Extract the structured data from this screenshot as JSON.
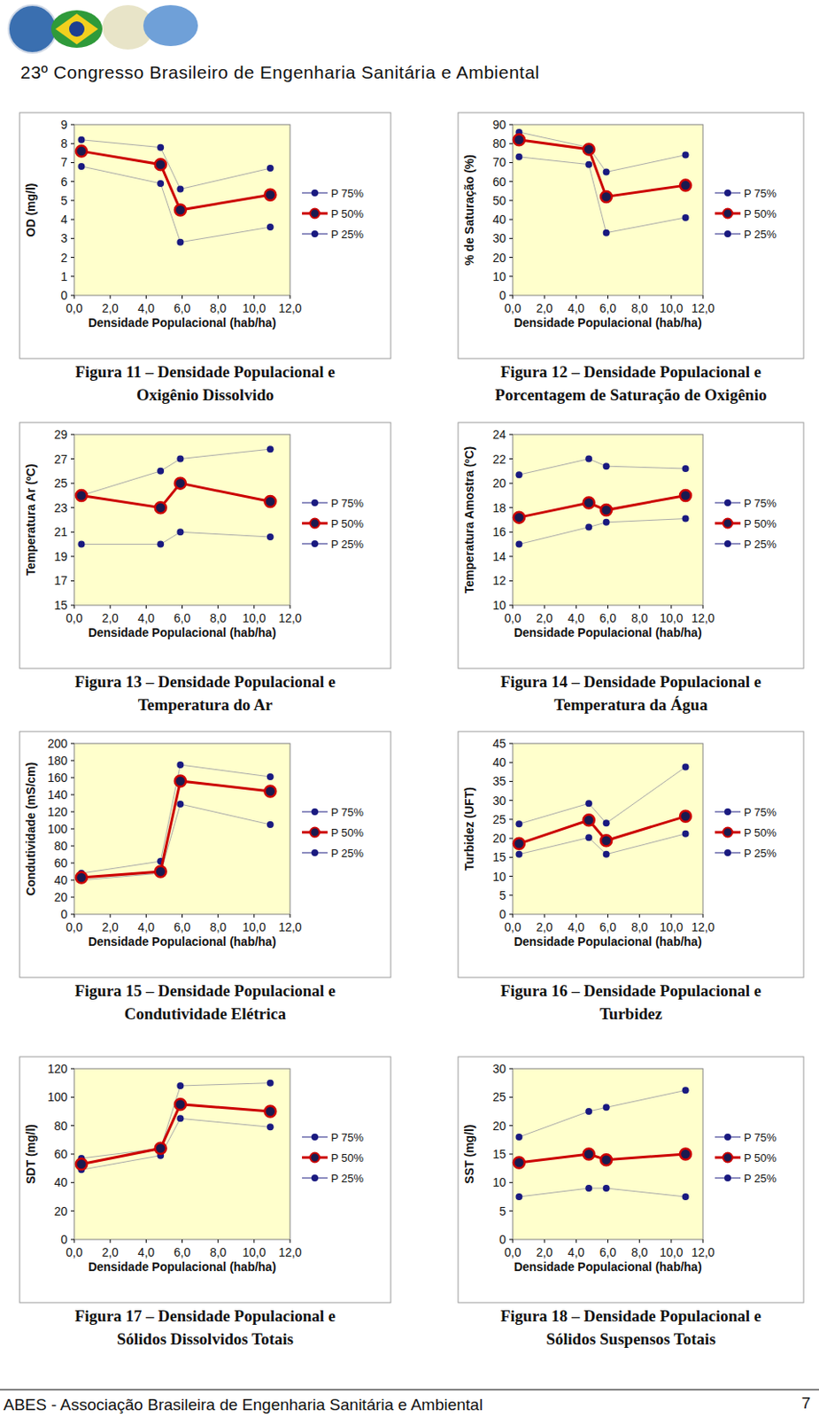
{
  "header": {
    "title": "23º Congresso Brasileiro de Engenharia Sanitária e Ambiental"
  },
  "footer": {
    "text": "ABES - Associação Brasileira de Engenharia Sanitária e Ambiental",
    "page": 7
  },
  "chart_data": [
    {
      "type": "line",
      "title": "Figura 11 – Densidade Populacional e",
      "subtitle": "Oxigênio Dissolvido",
      "x_label": "Densidade Populacional (hab/ha)",
      "y_label": "OD (mg/l)",
      "x": [
        0.4,
        4.8,
        5.9,
        10.9
      ],
      "series": [
        {
          "name": "P 75%",
          "color": "#1a1a80",
          "marker": "circle",
          "line_style": "thin",
          "values": [
            8.2,
            7.8,
            5.6,
            6.7
          ]
        },
        {
          "name": "P 50%",
          "color": "#cc0000",
          "marker": "circle",
          "line_style": "thick",
          "values": [
            7.6,
            6.9,
            4.5,
            5.3
          ]
        },
        {
          "name": "P 25%",
          "color": "#1a1a80",
          "marker": "circle",
          "line_style": "thin",
          "values": [
            6.8,
            5.9,
            2.8,
            3.6
          ]
        }
      ],
      "xlim": [
        0,
        12
      ],
      "xticks": [
        {
          "value": 0,
          "label": "0,0"
        },
        {
          "value": 2,
          "label": "2,0"
        },
        {
          "value": 4,
          "label": "4,0"
        },
        {
          "value": 6,
          "label": "6,0"
        },
        {
          "value": 8,
          "label": "8,0"
        },
        {
          "value": 10,
          "label": "10,0"
        },
        {
          "value": 12,
          "label": "12,0"
        }
      ],
      "ylim": [
        0,
        9
      ],
      "yticks": [
        0,
        1,
        2,
        3,
        4,
        5,
        6,
        7,
        8,
        9
      ],
      "grid": false,
      "legend": "right"
    },
    {
      "type": "line",
      "title": "Figura 12 – Densidade Populacional e",
      "subtitle": "Porcentagem de Saturação de Oxigênio",
      "x_label": "Densidade Populacional (hab/ha)",
      "y_label": "% de Saturação (%)",
      "x": [
        0.4,
        4.8,
        5.9,
        10.9
      ],
      "series": [
        {
          "name": "P 75%",
          "color": "#1a1a80",
          "marker": "circle",
          "line_style": "thin",
          "values": [
            86,
            78,
            65,
            74
          ]
        },
        {
          "name": "P 50%",
          "color": "#cc0000",
          "marker": "circle",
          "line_style": "thick",
          "values": [
            82,
            77,
            52,
            58
          ]
        },
        {
          "name": "P 25%",
          "color": "#1a1a80",
          "marker": "circle",
          "line_style": "thin",
          "values": [
            73,
            69,
            33,
            41
          ]
        }
      ],
      "xlim": [
        0,
        12
      ],
      "xticks": [
        {
          "value": 0,
          "label": "0,0"
        },
        {
          "value": 2,
          "label": "2,0"
        },
        {
          "value": 4,
          "label": "4,0"
        },
        {
          "value": 6,
          "label": "6,0"
        },
        {
          "value": 8,
          "label": "8,0"
        },
        {
          "value": 10,
          "label": "10,0"
        },
        {
          "value": 12,
          "label": "12,0"
        }
      ],
      "ylim": [
        0,
        90
      ],
      "yticks": [
        0,
        10,
        20,
        30,
        40,
        50,
        60,
        70,
        80,
        90
      ],
      "grid": false,
      "legend": "right"
    },
    {
      "type": "line",
      "title": "Figura 13 – Densidade Populacional e",
      "subtitle": "Temperatura do Ar",
      "x_label": "Densidade Populacional (hab/ha)",
      "y_label": "Temperatura Ar (ºC)",
      "x": [
        0.4,
        4.8,
        5.9,
        10.9
      ],
      "series": [
        {
          "name": "P 75%",
          "color": "#1a1a80",
          "marker": "circle",
          "line_style": "thin",
          "values": [
            24,
            26,
            27,
            27.8
          ]
        },
        {
          "name": "P 50%",
          "color": "#cc0000",
          "marker": "circle",
          "line_style": "thick",
          "values": [
            24,
            23,
            25,
            23.5
          ]
        },
        {
          "name": "P 25%",
          "color": "#1a1a80",
          "marker": "circle",
          "line_style": "thin",
          "values": [
            20,
            20,
            21,
            20.6
          ]
        }
      ],
      "xlim": [
        0,
        12
      ],
      "xticks": [
        {
          "value": 0,
          "label": "0,0"
        },
        {
          "value": 2,
          "label": "2,0"
        },
        {
          "value": 4,
          "label": "4,0"
        },
        {
          "value": 6,
          "label": "6,0"
        },
        {
          "value": 8,
          "label": "8,0"
        },
        {
          "value": 10,
          "label": "10,0"
        },
        {
          "value": 12,
          "label": "12,0"
        }
      ],
      "ylim": [
        15,
        29
      ],
      "yticks": [
        15,
        17,
        19,
        21,
        23,
        25,
        27,
        29
      ],
      "grid": false,
      "legend": "right"
    },
    {
      "type": "line",
      "title": "Figura 14 – Densidade Populacional e",
      "subtitle": "Temperatura da Água",
      "x_label": "Densidade Populacional (hab/ha)",
      "y_label": "Temperatura Amostra (ºC)",
      "x": [
        0.4,
        4.8,
        5.9,
        10.9
      ],
      "series": [
        {
          "name": "P 75%",
          "color": "#1a1a80",
          "marker": "circle",
          "line_style": "thin",
          "values": [
            20.7,
            22,
            21.4,
            21.2
          ]
        },
        {
          "name": "P 50%",
          "color": "#cc0000",
          "marker": "circle",
          "line_style": "thick",
          "values": [
            17.2,
            18.4,
            17.8,
            19
          ]
        },
        {
          "name": "P 25%",
          "color": "#1a1a80",
          "marker": "circle",
          "line_style": "thin",
          "values": [
            15,
            16.4,
            16.8,
            17.1
          ]
        }
      ],
      "xlim": [
        0,
        12
      ],
      "xticks": [
        {
          "value": 0,
          "label": "0,0"
        },
        {
          "value": 2,
          "label": "2,0"
        },
        {
          "value": 4,
          "label": "4,0"
        },
        {
          "value": 6,
          "label": "6,0"
        },
        {
          "value": 8,
          "label": "8,0"
        },
        {
          "value": 10,
          "label": "10,0"
        },
        {
          "value": 12,
          "label": "12,0"
        }
      ],
      "ylim": [
        10,
        24
      ],
      "yticks": [
        10,
        12,
        14,
        16,
        18,
        20,
        22,
        24
      ],
      "grid": false,
      "legend": "right"
    },
    {
      "type": "line",
      "title": "Figura 15 – Densidade Populacional e",
      "subtitle": "Condutividade Elétrica",
      "x_label": "Densidade Populacional (hab/ha)",
      "y_label": "Condutividade (mS/cm)",
      "x": [
        0.4,
        4.8,
        5.9,
        10.9
      ],
      "series": [
        {
          "name": "P 75%",
          "color": "#1a1a80",
          "marker": "circle",
          "line_style": "thin",
          "values": [
            48,
            62,
            175,
            161
          ]
        },
        {
          "name": "P 50%",
          "color": "#cc0000",
          "marker": "circle",
          "line_style": "thick",
          "values": [
            43,
            50,
            156,
            144
          ]
        },
        {
          "name": "P 25%",
          "color": "#1a1a80",
          "marker": "circle",
          "line_style": "thin",
          "values": [
            40,
            48,
            129,
            105
          ]
        }
      ],
      "xlim": [
        0,
        12
      ],
      "xticks": [
        {
          "value": 0,
          "label": "0,0"
        },
        {
          "value": 2,
          "label": "2,0"
        },
        {
          "value": 4,
          "label": "4,0"
        },
        {
          "value": 6,
          "label": "6,0"
        },
        {
          "value": 8,
          "label": "8,0"
        },
        {
          "value": 10,
          "label": "10,0"
        },
        {
          "value": 12,
          "label": "12,0"
        }
      ],
      "ylim": [
        0,
        200
      ],
      "yticks": [
        0,
        20,
        40,
        60,
        80,
        100,
        120,
        140,
        160,
        180,
        200
      ],
      "grid": false,
      "legend": "right"
    },
    {
      "type": "line",
      "title": "Figura 16 – Densidade Populacional e",
      "subtitle": "Turbidez",
      "x_label": "Densidade Populacional (hab/ha)",
      "y_label": "Turbidez (UFT)",
      "x": [
        0.4,
        4.8,
        5.9,
        10.9
      ],
      "series": [
        {
          "name": "P 75%",
          "color": "#1a1a80",
          "marker": "circle",
          "line_style": "thin",
          "values": [
            23.8,
            29.2,
            24,
            38.8
          ]
        },
        {
          "name": "P 50%",
          "color": "#cc0000",
          "marker": "circle",
          "line_style": "thick",
          "values": [
            18.6,
            24.8,
            19.4,
            25.8
          ]
        },
        {
          "name": "P 25%",
          "color": "#1a1a80",
          "marker": "circle",
          "line_style": "thin",
          "values": [
            15.8,
            20.2,
            15.8,
            21.2
          ]
        }
      ],
      "xlim": [
        0,
        12
      ],
      "xticks": [
        {
          "value": 0,
          "label": "0,0"
        },
        {
          "value": 2,
          "label": "2,0"
        },
        {
          "value": 4,
          "label": "4,0"
        },
        {
          "value": 6,
          "label": "6,0"
        },
        {
          "value": 8,
          "label": "8,0"
        },
        {
          "value": 10,
          "label": "10,0"
        },
        {
          "value": 12,
          "label": "12,0"
        }
      ],
      "ylim": [
        0,
        45
      ],
      "yticks": [
        0,
        5,
        10,
        15,
        20,
        25,
        30,
        35,
        40,
        45
      ],
      "grid": false,
      "legend": "right"
    },
    {
      "type": "line",
      "title": "Figura 17 – Densidade Populacional e",
      "subtitle": "Sólidos Dissolvidos Totais",
      "x_label": "Densidade Populacional (hab/ha)",
      "y_label": "SDT (mg/l)",
      "x": [
        0.4,
        4.8,
        5.9,
        10.9
      ],
      "series": [
        {
          "name": "P 75%",
          "color": "#1a1a80",
          "marker": "circle",
          "line_style": "thin",
          "values": [
            57,
            64,
            108,
            110
          ]
        },
        {
          "name": "P 50%",
          "color": "#cc0000",
          "marker": "circle",
          "line_style": "thick",
          "values": [
            53,
            64,
            95,
            90
          ]
        },
        {
          "name": "P 25%",
          "color": "#1a1a80",
          "marker": "circle",
          "line_style": "thin",
          "values": [
            49,
            59,
            85,
            79
          ]
        }
      ],
      "xlim": [
        0,
        12
      ],
      "xticks": [
        {
          "value": 0,
          "label": "0,0"
        },
        {
          "value": 2,
          "label": "2,0"
        },
        {
          "value": 4,
          "label": "4,0"
        },
        {
          "value": 6,
          "label": "6,0"
        },
        {
          "value": 8,
          "label": "8,0"
        },
        {
          "value": 10,
          "label": "10,0"
        },
        {
          "value": 12,
          "label": "12,0"
        }
      ],
      "ylim": [
        0,
        120
      ],
      "yticks": [
        0,
        20,
        40,
        60,
        80,
        100,
        120
      ],
      "grid": false,
      "legend": "right"
    },
    {
      "type": "line",
      "title": "Figura 18 – Densidade Populacional e",
      "subtitle": "Sólidos Suspensos Totais",
      "x_label": "Densidade Populacional (hab/ha)",
      "y_label": "SST (mg/l)",
      "x": [
        0.4,
        4.8,
        5.9,
        10.9
      ],
      "series": [
        {
          "name": "P 75%",
          "color": "#1a1a80",
          "marker": "circle",
          "line_style": "thin",
          "values": [
            18,
            22.5,
            23.2,
            26.2
          ]
        },
        {
          "name": "P 50%",
          "color": "#cc0000",
          "marker": "circle",
          "line_style": "thick",
          "values": [
            13.5,
            15,
            14,
            15
          ]
        },
        {
          "name": "P 25%",
          "color": "#1a1a80",
          "marker": "circle",
          "line_style": "thin",
          "values": [
            7.5,
            9,
            9,
            7.5
          ]
        }
      ],
      "xlim": [
        0,
        12
      ],
      "xticks": [
        {
          "value": 0,
          "label": "0,0"
        },
        {
          "value": 2,
          "label": "2,0"
        },
        {
          "value": 4,
          "label": "4,0"
        },
        {
          "value": 6,
          "label": "6,0"
        },
        {
          "value": 8,
          "label": "8,0"
        },
        {
          "value": 10,
          "label": "10,0"
        },
        {
          "value": 12,
          "label": "12,0"
        }
      ],
      "ylim": [
        0,
        30
      ],
      "yticks": [
        0,
        5,
        10,
        15,
        20,
        25,
        30
      ],
      "grid": false,
      "legend": "right"
    }
  ]
}
